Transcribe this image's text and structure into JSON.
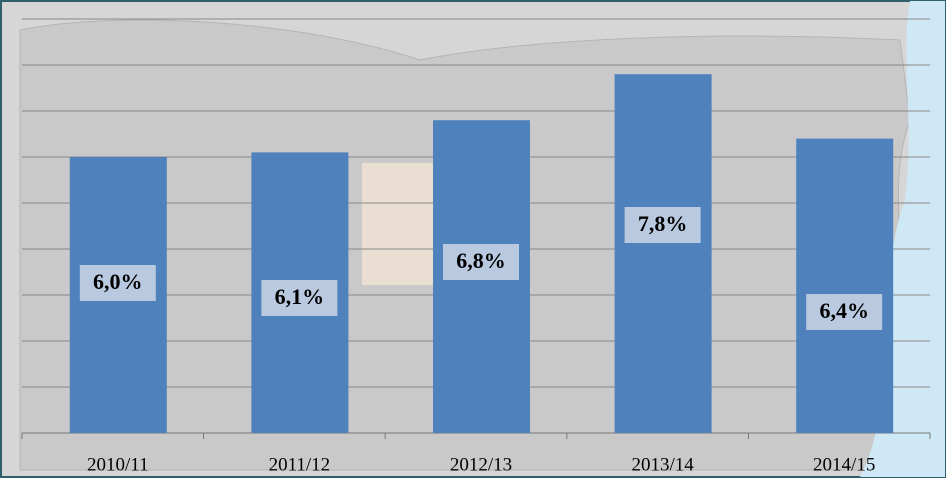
{
  "chart_data": {
    "type": "bar",
    "categories": [
      "2010/11",
      "2011/12",
      "2012/13",
      "2013/14",
      "2014/15"
    ],
    "values": [
      6.0,
      6.1,
      6.8,
      7.8,
      6.4
    ],
    "value_labels": [
      "6,0%",
      "6,1%",
      "6,8%",
      "7,8%",
      "6,4%"
    ],
    "color": "#4f81bd",
    "ylim": [
      0,
      9.2
    ],
    "yticks": [
      0,
      1,
      2,
      3,
      4,
      5,
      6,
      7,
      8,
      9
    ],
    "grid": true
  }
}
